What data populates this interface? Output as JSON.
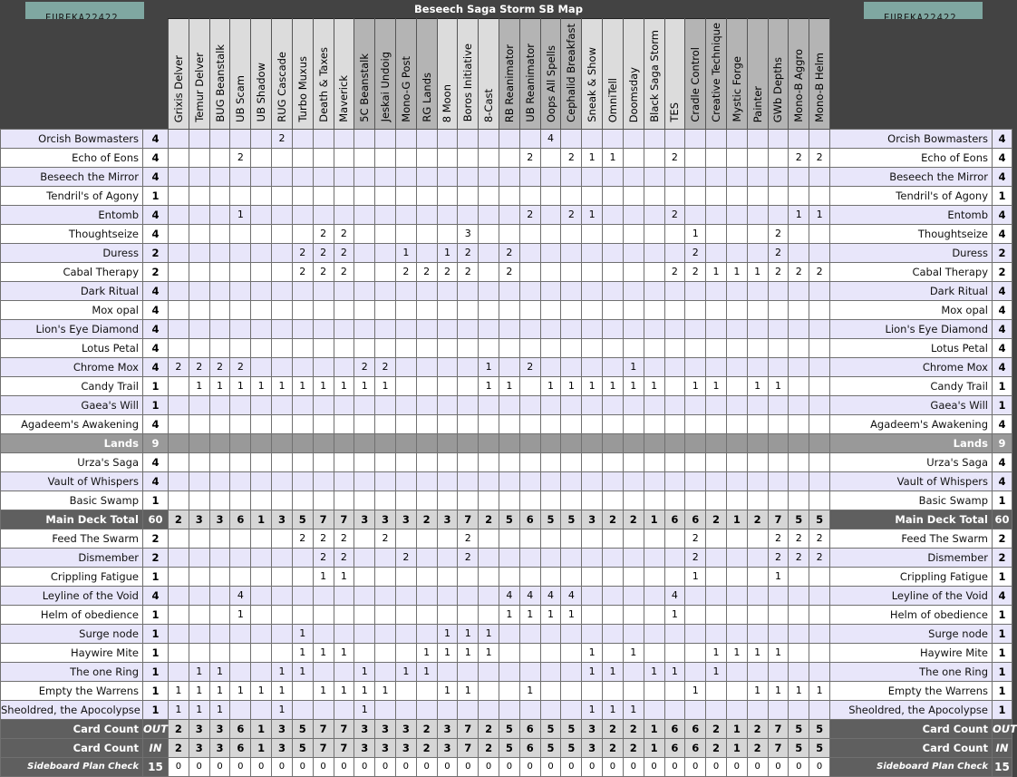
{
  "title": "Beseech Saga Storm SB Map",
  "logo_text": "EUREKA22422",
  "colors": {
    "header_bg": "#434343",
    "row_alt": "#e8e6fa",
    "lands_row": "#999999",
    "total_label": "#5f5f5f",
    "total_cells": "#d6d6d6",
    "logo_bg": "#7fa7a1"
  },
  "matchups": [
    {
      "name": "Grixis Delver",
      "shade": "light"
    },
    {
      "name": "Temur Delver",
      "shade": "light"
    },
    {
      "name": "BUG Beanstalk",
      "shade": "light"
    },
    {
      "name": "UB Scam",
      "shade": "light"
    },
    {
      "name": "UB Shadow",
      "shade": "light"
    },
    {
      "name": "RUG Cascade",
      "shade": "light"
    },
    {
      "name": "Turbo Muxus",
      "shade": "light"
    },
    {
      "name": "Death & Taxes",
      "shade": "light"
    },
    {
      "name": "Maverick",
      "shade": "light"
    },
    {
      "name": "5C Beanstalk",
      "shade": "dark"
    },
    {
      "name": "Jeskai Undoig",
      "shade": "dark"
    },
    {
      "name": "Mono-G Post",
      "shade": "dark"
    },
    {
      "name": "RG Lands",
      "shade": "dark"
    },
    {
      "name": "8 Moon",
      "shade": "light"
    },
    {
      "name": "Boros Initiative",
      "shade": "light"
    },
    {
      "name": "8-Cast",
      "shade": "light"
    },
    {
      "name": "RB Reanimator",
      "shade": "dark"
    },
    {
      "name": "UB Reanimator",
      "shade": "dark"
    },
    {
      "name": "Oops All Spells",
      "shade": "dark"
    },
    {
      "name": "Cephalid Breakfast",
      "shade": "dark"
    },
    {
      "name": "Sneak & Show",
      "shade": "light"
    },
    {
      "name": "OmniTell",
      "shade": "light"
    },
    {
      "name": "Doomsday",
      "shade": "light"
    },
    {
      "name": "Black Saga Storm",
      "shade": "light"
    },
    {
      "name": "TES",
      "shade": "light"
    },
    {
      "name": "Cradle Control",
      "shade": "dark"
    },
    {
      "name": "Creative Technique",
      "shade": "dark"
    },
    {
      "name": "Mystic Forge",
      "shade": "dark"
    },
    {
      "name": "Painter",
      "shade": "dark"
    },
    {
      "name": "GWb Depths",
      "shade": "dark"
    },
    {
      "name": "Mono-B Aggro",
      "shade": "dark"
    },
    {
      "name": "Mono-B Helm",
      "shade": "dark"
    }
  ],
  "rows": [
    {
      "type": "card",
      "name": "Orcish Bowmasters",
      "qty": "4",
      "cells": {
        "5": "2",
        "18": "4"
      }
    },
    {
      "type": "card",
      "name": "Echo of Eons",
      "qty": "4",
      "cells": {
        "3": "2",
        "17": "2",
        "19": "2",
        "20": "1",
        "21": "1",
        "24": "2",
        "30": "2",
        "31": "2"
      }
    },
    {
      "type": "card",
      "name": "Beseech the Mirror",
      "qty": "4",
      "cells": {}
    },
    {
      "type": "card",
      "name": "Tendril's of Agony",
      "qty": "1",
      "cells": {}
    },
    {
      "type": "card",
      "name": "Entomb",
      "qty": "4",
      "cells": {
        "3": "1",
        "17": "2",
        "19": "2",
        "20": "1",
        "24": "2",
        "30": "1",
        "31": "1"
      }
    },
    {
      "type": "card",
      "name": "Thoughtseize",
      "qty": "4",
      "cells": {
        "7": "2",
        "8": "2",
        "14": "3",
        "25": "1",
        "29": "2"
      }
    },
    {
      "type": "card",
      "name": "Duress",
      "qty": "2",
      "cells": {
        "6": "2",
        "7": "2",
        "8": "2",
        "11": "1",
        "13": "1",
        "14": "2",
        "16": "2",
        "25": "2",
        "29": "2"
      }
    },
    {
      "type": "card",
      "name": "Cabal Therapy",
      "qty": "2",
      "cells": {
        "6": "2",
        "7": "2",
        "8": "2",
        "11": "2",
        "12": "2",
        "13": "2",
        "14": "2",
        "16": "2",
        "24": "2",
        "25": "2",
        "26": "1",
        "27": "1",
        "28": "1",
        "29": "2",
        "30": "2",
        "31": "2"
      }
    },
    {
      "type": "card",
      "name": "Dark Ritual",
      "qty": "4",
      "cells": {}
    },
    {
      "type": "card",
      "name": "Mox opal",
      "qty": "4",
      "cells": {}
    },
    {
      "type": "card",
      "name": "Lion's Eye Diamond",
      "qty": "4",
      "cells": {}
    },
    {
      "type": "card",
      "name": "Lotus Petal",
      "qty": "4",
      "cells": {}
    },
    {
      "type": "card",
      "name": "Chrome Mox",
      "qty": "4",
      "cells": {
        "0": "2",
        "1": "2",
        "2": "2",
        "3": "2",
        "9": "2",
        "10": "2",
        "15": "1",
        "17": "2",
        "22": "1"
      }
    },
    {
      "type": "card",
      "name": "Candy Trail",
      "qty": "1",
      "cells": {
        "1": "1",
        "2": "1",
        "3": "1",
        "4": "1",
        "5": "1",
        "6": "1",
        "7": "1",
        "8": "1",
        "9": "1",
        "10": "1",
        "15": "1",
        "16": "1",
        "18": "1",
        "19": "1",
        "20": "1",
        "21": "1",
        "22": "1",
        "23": "1",
        "25": "1",
        "26": "1",
        "28": "1",
        "29": "1"
      }
    },
    {
      "type": "card",
      "name": "Gaea's Will",
      "qty": "1",
      "cells": {}
    },
    {
      "type": "card",
      "name": "Agadeem's Awakening",
      "qty": "4",
      "cells": {}
    },
    {
      "type": "lands",
      "name": "Lands",
      "qty": "9",
      "cells": {}
    },
    {
      "type": "card",
      "name": "Urza's Saga",
      "qty": "4",
      "cells": {}
    },
    {
      "type": "card",
      "name": "Vault of Whispers",
      "qty": "4",
      "cells": {}
    },
    {
      "type": "card",
      "name": "Basic Swamp",
      "qty": "1",
      "cells": {}
    },
    {
      "type": "total",
      "name": "Main Deck Total",
      "qty": "60",
      "cells": [
        "2",
        "3",
        "3",
        "6",
        "1",
        "3",
        "5",
        "7",
        "7",
        "3",
        "3",
        "3",
        "2",
        "3",
        "7",
        "2",
        "5",
        "6",
        "5",
        "5",
        "3",
        "2",
        "2",
        "1",
        "6",
        "6",
        "2",
        "1",
        "2",
        "7",
        "5",
        "5"
      ]
    },
    {
      "type": "card",
      "name": "Feed The Swarm",
      "qty": "2",
      "cells": {
        "6": "2",
        "7": "2",
        "8": "2",
        "10": "2",
        "14": "2",
        "25": "2",
        "29": "2",
        "30": "2",
        "31": "2"
      }
    },
    {
      "type": "card",
      "name": "Dismember",
      "qty": "2",
      "cells": {
        "7": "2",
        "8": "2",
        "11": "2",
        "14": "2",
        "25": "2",
        "29": "2",
        "30": "2",
        "31": "2"
      }
    },
    {
      "type": "card",
      "name": "Crippling Fatigue",
      "qty": "1",
      "cells": {
        "7": "1",
        "8": "1",
        "25": "1",
        "29": "1"
      }
    },
    {
      "type": "card",
      "name": "Leyline of the Void",
      "qty": "4",
      "cells": {
        "3": "4",
        "16": "4",
        "17": "4",
        "18": "4",
        "19": "4",
        "24": "4"
      }
    },
    {
      "type": "card",
      "name": "Helm of obedience",
      "qty": "1",
      "cells": {
        "3": "1",
        "16": "1",
        "17": "1",
        "18": "1",
        "19": "1",
        "24": "1"
      }
    },
    {
      "type": "card",
      "name": "Surge node",
      "qty": "1",
      "cells": {
        "6": "1",
        "13": "1",
        "14": "1",
        "15": "1"
      }
    },
    {
      "type": "card",
      "name": "Haywire Mite",
      "qty": "1",
      "cells": {
        "6": "1",
        "7": "1",
        "8": "1",
        "12": "1",
        "13": "1",
        "14": "1",
        "15": "1",
        "20": "1",
        "22": "1",
        "26": "1",
        "27": "1",
        "28": "1",
        "29": "1"
      }
    },
    {
      "type": "card",
      "name": "The one Ring",
      "qty": "1",
      "cells": {
        "1": "1",
        "2": "1",
        "5": "1",
        "6": "1",
        "9": "1",
        "11": "1",
        "12": "1",
        "20": "1",
        "21": "1",
        "23": "1",
        "24": "1",
        "26": "1"
      }
    },
    {
      "type": "card",
      "name": "Empty the Warrens",
      "qty": "1",
      "cells": {
        "0": "1",
        "1": "1",
        "2": "1",
        "3": "1",
        "4": "1",
        "5": "1",
        "7": "1",
        "8": "1",
        "9": "1",
        "10": "1",
        "13": "1",
        "14": "1",
        "17": "1",
        "25": "1",
        "28": "1",
        "29": "1",
        "30": "1",
        "31": "1"
      }
    },
    {
      "type": "card",
      "name": "Sheoldred, the Apocolypse",
      "qty": "1",
      "cells": {
        "0": "1",
        "1": "1",
        "2": "1",
        "5": "1",
        "9": "1",
        "20": "1",
        "21": "1",
        "22": "1"
      }
    },
    {
      "type": "total",
      "name": "Card Count",
      "qty": "OUT",
      "cells": [
        "2",
        "3",
        "3",
        "6",
        "1",
        "3",
        "5",
        "7",
        "7",
        "3",
        "3",
        "3",
        "2",
        "3",
        "7",
        "2",
        "5",
        "6",
        "5",
        "5",
        "3",
        "2",
        "2",
        "1",
        "6",
        "6",
        "2",
        "1",
        "2",
        "7",
        "5",
        "5"
      ]
    },
    {
      "type": "total",
      "name": "Card Count",
      "qty": "IN",
      "cells": [
        "2",
        "3",
        "3",
        "6",
        "1",
        "3",
        "5",
        "7",
        "7",
        "3",
        "3",
        "3",
        "2",
        "3",
        "7",
        "2",
        "5",
        "6",
        "5",
        "5",
        "3",
        "2",
        "2",
        "1",
        "6",
        "6",
        "2",
        "1",
        "2",
        "7",
        "5",
        "5"
      ]
    },
    {
      "type": "check",
      "name": "Sideboard Plan Check",
      "qty": "15",
      "cells": [
        "0",
        "0",
        "0",
        "0",
        "0",
        "0",
        "0",
        "0",
        "0",
        "0",
        "0",
        "0",
        "0",
        "0",
        "0",
        "0",
        "0",
        "0",
        "0",
        "0",
        "0",
        "0",
        "0",
        "0",
        "0",
        "0",
        "0",
        "0",
        "0",
        "0",
        "0",
        "0"
      ]
    }
  ]
}
